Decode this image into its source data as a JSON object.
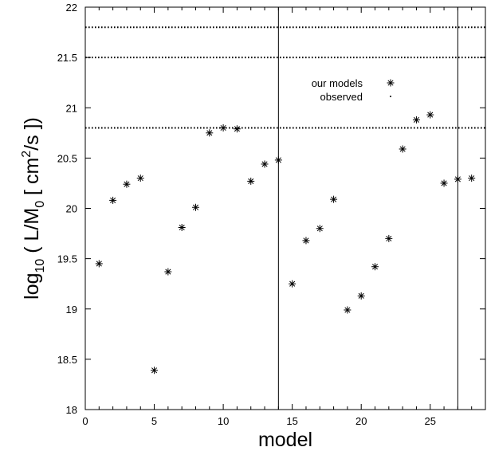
{
  "chart_data": {
    "type": "scatter",
    "xlabel": "model",
    "ylabel": {
      "prefix": "log",
      "prefix_sub": "10",
      "open": " ( L/M",
      "mid_sub": "0",
      "mid": " [ cm",
      "mid_sup": "2",
      "close": "/s ])"
    },
    "xlim": [
      0,
      29
    ],
    "ylim": [
      18,
      22
    ],
    "xticks": [
      "0",
      "5",
      "10",
      "15",
      "20",
      "25"
    ],
    "xtick_values": [
      0,
      5,
      10,
      15,
      20,
      25
    ],
    "yticks": [
      "18",
      "18.5",
      "19",
      "19.5",
      "20",
      "20.5",
      "21",
      "21.5",
      "22"
    ],
    "ytick_values": [
      18,
      18.5,
      19,
      19.5,
      20,
      20.5,
      21,
      21.5,
      22
    ],
    "grid": false,
    "legend_position": "top-right",
    "series": [
      {
        "name": "our models",
        "marker": "asterisk",
        "x": [
          1,
          2,
          3,
          4,
          5,
          6,
          7,
          8,
          9,
          10,
          11,
          12,
          13,
          14,
          15,
          16,
          17,
          18,
          19,
          20,
          21,
          22,
          23,
          24,
          25,
          26,
          27,
          28
        ],
        "y": [
          19.45,
          20.08,
          20.24,
          20.3,
          18.39,
          19.37,
          19.81,
          20.01,
          20.75,
          20.8,
          20.79,
          20.27,
          20.44,
          20.48,
          19.25,
          19.68,
          19.8,
          20.09,
          18.99,
          19.13,
          19.42,
          19.7,
          20.59,
          20.88,
          20.93,
          20.25,
          20.29,
          20.3
        ]
      },
      {
        "name": "observed",
        "marker": "dot",
        "style": "dotted horizontal line",
        "y": [
          21.8,
          21.5,
          20.8
        ]
      }
    ],
    "vertical_lines_x": [
      14,
      27
    ]
  }
}
